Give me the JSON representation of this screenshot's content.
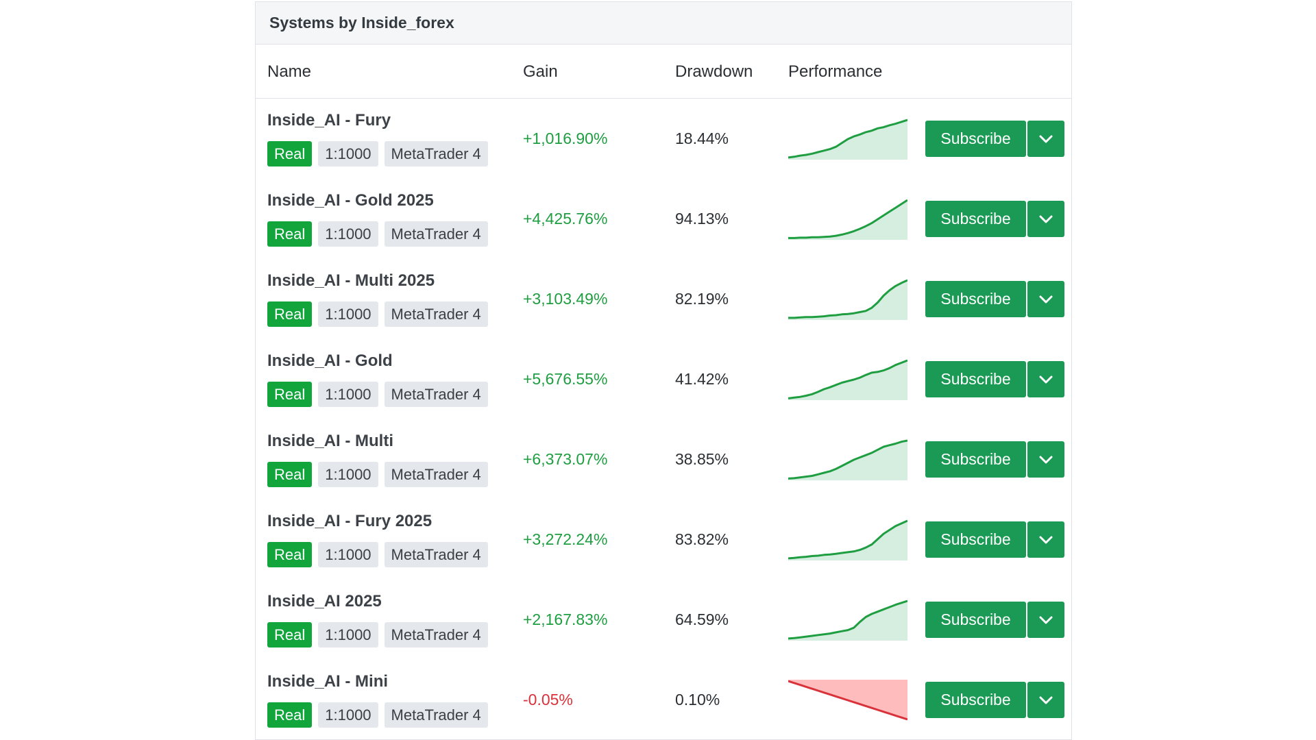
{
  "panel": {
    "title": "Systems by Inside_forex"
  },
  "columns": {
    "name": "Name",
    "gain": "Gain",
    "drawdown": "Drawdown",
    "performance": "Performance"
  },
  "colors": {
    "positive": "#1e9e41",
    "negative": "#d9323a",
    "brand": "#1b9a55",
    "real_badge": "#12a53c"
  },
  "buttons": {
    "subscribe": "Subscribe",
    "dropdown_icon": "chevron-down-icon"
  },
  "systems": [
    {
      "name": "Inside_AI - Fury",
      "type": "Real",
      "leverage": "1:1000",
      "platform": "MetaTrader 4",
      "gain": "+1,016.90%",
      "gain_sign": "pos",
      "drawdown": "18.44%",
      "trend": [
        0.02,
        0.04,
        0.07,
        0.09,
        0.12,
        0.16,
        0.2,
        0.24,
        0.3,
        0.4,
        0.5,
        0.57,
        0.62,
        0.68,
        0.72,
        0.78,
        0.81,
        0.86,
        0.9,
        0.95,
        1.0
      ]
    },
    {
      "name": "Inside_AI - Gold 2025",
      "type": "Real",
      "leverage": "1:1000",
      "platform": "MetaTrader 4",
      "gain": "+4,425.76%",
      "gain_sign": "pos",
      "drawdown": "94.13%",
      "trend": [
        0.01,
        0.01,
        0.02,
        0.02,
        0.03,
        0.03,
        0.04,
        0.05,
        0.07,
        0.1,
        0.14,
        0.19,
        0.25,
        0.32,
        0.4,
        0.5,
        0.6,
        0.7,
        0.8,
        0.9,
        1.0
      ]
    },
    {
      "name": "Inside_AI - Multi 2025",
      "type": "Real",
      "leverage": "1:1000",
      "platform": "MetaTrader 4",
      "gain": "+3,103.49%",
      "gain_sign": "pos",
      "drawdown": "82.19%",
      "trend": [
        0.02,
        0.02,
        0.03,
        0.04,
        0.04,
        0.05,
        0.06,
        0.08,
        0.09,
        0.11,
        0.12,
        0.14,
        0.17,
        0.2,
        0.28,
        0.42,
        0.6,
        0.74,
        0.85,
        0.93,
        1.0
      ]
    },
    {
      "name": "Inside_AI - Gold",
      "type": "Real",
      "leverage": "1:1000",
      "platform": "MetaTrader 4",
      "gain": "+5,676.55%",
      "gain_sign": "pos",
      "drawdown": "41.42%",
      "trend": [
        0.01,
        0.03,
        0.05,
        0.08,
        0.12,
        0.18,
        0.25,
        0.3,
        0.36,
        0.42,
        0.46,
        0.5,
        0.55,
        0.62,
        0.68,
        0.7,
        0.74,
        0.8,
        0.88,
        0.94,
        1.0
      ]
    },
    {
      "name": "Inside_AI - Multi",
      "type": "Real",
      "leverage": "1:1000",
      "platform": "MetaTrader 4",
      "gain": "+6,373.07%",
      "gain_sign": "pos",
      "drawdown": "38.85%",
      "trend": [
        0.01,
        0.02,
        0.04,
        0.06,
        0.08,
        0.12,
        0.16,
        0.2,
        0.26,
        0.34,
        0.42,
        0.5,
        0.56,
        0.62,
        0.68,
        0.76,
        0.84,
        0.88,
        0.92,
        0.97,
        1.0
      ]
    },
    {
      "name": "Inside_AI - Fury 2025",
      "type": "Real",
      "leverage": "1:1000",
      "platform": "MetaTrader 4",
      "gain": "+3,272.24%",
      "gain_sign": "pos",
      "drawdown": "83.82%",
      "trend": [
        0.02,
        0.03,
        0.05,
        0.06,
        0.08,
        0.09,
        0.11,
        0.12,
        0.14,
        0.16,
        0.18,
        0.2,
        0.24,
        0.3,
        0.38,
        0.52,
        0.66,
        0.76,
        0.86,
        0.93,
        1.0
      ]
    },
    {
      "name": "Inside_AI 2025",
      "type": "Real",
      "leverage": "1:1000",
      "platform": "MetaTrader 4",
      "gain": "+2,167.83%",
      "gain_sign": "pos",
      "drawdown": "64.59%",
      "trend": [
        0.02,
        0.03,
        0.05,
        0.07,
        0.09,
        0.11,
        0.13,
        0.15,
        0.18,
        0.21,
        0.24,
        0.3,
        0.45,
        0.58,
        0.66,
        0.72,
        0.78,
        0.84,
        0.9,
        0.95,
        1.0
      ]
    },
    {
      "name": "Inside_AI - Mini",
      "type": "Real",
      "leverage": "1:1000",
      "platform": "MetaTrader 4",
      "gain": "-0.05%",
      "gain_sign": "neg",
      "drawdown": "0.10%",
      "trend": [
        1.0,
        0.95,
        0.9,
        0.85,
        0.8,
        0.75,
        0.7,
        0.65,
        0.6,
        0.55,
        0.5,
        0.45,
        0.4,
        0.35,
        0.3,
        0.25,
        0.2,
        0.15,
        0.1,
        0.05,
        0.0
      ]
    }
  ]
}
